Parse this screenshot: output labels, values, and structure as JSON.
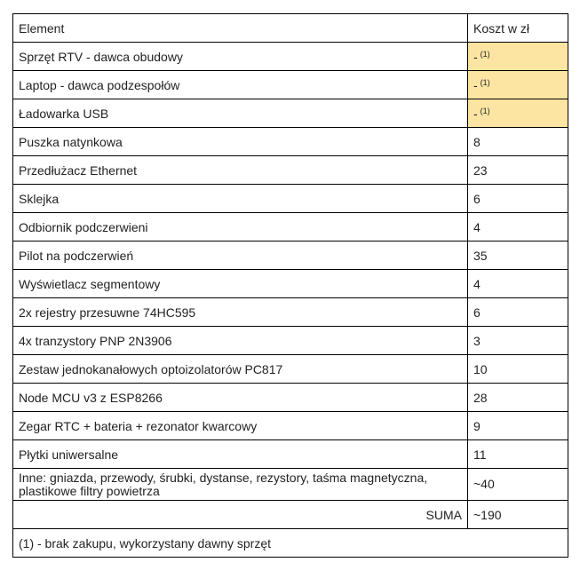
{
  "header": {
    "element": "Element",
    "cost": "Koszt w zł"
  },
  "rows": [
    {
      "element": "Sprzęt RTV - dawca obudowy",
      "cost": "-",
      "note": "(1)"
    },
    {
      "element": "Laptop - dawca podzespołów",
      "cost": "-",
      "note": "(1)"
    },
    {
      "element": "Ładowarka USB",
      "cost": "-",
      "note": "(1)"
    },
    {
      "element": "Puszka natynkowa",
      "cost": "8"
    },
    {
      "element": "Przedłużacz Ethernet",
      "cost": "23"
    },
    {
      "element": "Sklejka",
      "cost": "6"
    },
    {
      "element": "Odbiornik podczerwieni",
      "cost": "4"
    },
    {
      "element": "Pilot na podczerwień",
      "cost": "35"
    },
    {
      "element": "Wyświetlacz segmentowy",
      "cost": "4"
    },
    {
      "element": "2x rejestry przesuwne 74HC595",
      "cost": "6"
    },
    {
      "element": "4x tranzystory PNP 2N3906",
      "cost": "3"
    },
    {
      "element": "Zestaw jednokanałowych optoizolatorów PC817",
      "cost": "10"
    },
    {
      "element": "Node MCU v3 z ESP8266",
      "cost": "28"
    },
    {
      "element": "Zegar RTC + bateria + rezonator kwarcowy",
      "cost": "9"
    },
    {
      "element": "Płytki uniwersalne",
      "cost": "11"
    },
    {
      "element": "Inne: gniazda, przewody, śrubki, dystanse, rezystory, taśma magnetyczna, plastikowe filtry powietrza",
      "cost": "~40"
    }
  ],
  "sum": {
    "label": "SUMA",
    "value": "~190"
  },
  "footnote": "(1) - brak zakupu, wykorzystany dawny sprzęt",
  "colors": {
    "highlight": "#fce5a3",
    "border": "#000000"
  }
}
